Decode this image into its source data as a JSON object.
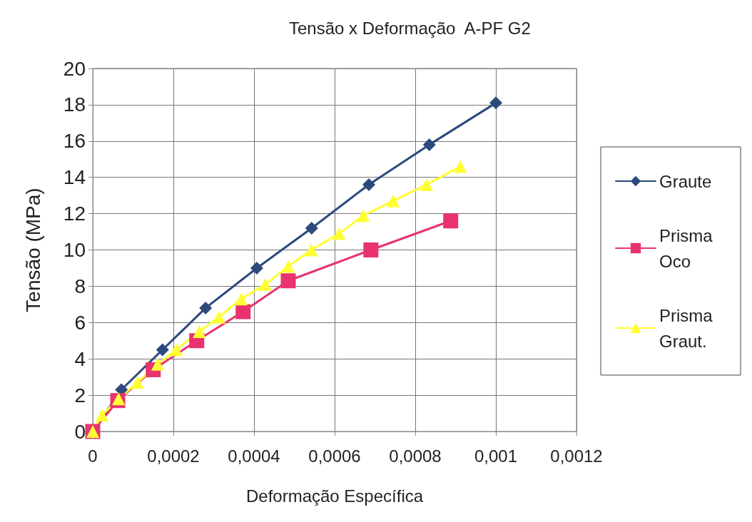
{
  "chart_data": {
    "type": "line",
    "title": "Tensão x Deformação  A-PF G2",
    "xlabel": "Deformação Específica",
    "ylabel": "Tensão (MPa)",
    "xlim": [
      0,
      0.0012
    ],
    "xticks": [
      {
        "value": 0,
        "label": "0"
      },
      {
        "value": 0.0002,
        "label": "0,0002"
      },
      {
        "value": 0.0004,
        "label": "0,0004"
      },
      {
        "value": 0.0006,
        "label": "0,0006"
      },
      {
        "value": 0.0008,
        "label": "0,0008"
      },
      {
        "value": 0.001,
        "label": "0,001"
      },
      {
        "value": 0.0012,
        "label": "0,0012"
      }
    ],
    "ylim": [
      0,
      20
    ],
    "yticks": [
      0,
      2,
      4,
      6,
      8,
      10,
      12,
      14,
      16,
      18,
      20
    ],
    "grid": true,
    "legend": "right",
    "line_style": "solid",
    "series": [
      {
        "name": "Graute",
        "color": "#2c4a7c",
        "marker": "diamond",
        "x": [
          0,
          7.1e-05,
          0.000173,
          0.00028,
          0.000407,
          0.000543,
          0.000685,
          0.000835,
          0.001
        ],
        "values": [
          0,
          2.3,
          4.5,
          6.8,
          9.0,
          11.2,
          13.6,
          15.8,
          18.1
        ]
      },
      {
        "name": "Prisma Oco",
        "color": "#e8336e",
        "marker": "square",
        "x": [
          0,
          6.2e-05,
          0.00015,
          0.000258,
          0.000373,
          0.000485,
          0.00069,
          0.000888
        ],
        "values": [
          0,
          1.7,
          3.4,
          5.0,
          6.6,
          8.3,
          10.0,
          11.6
        ]
      },
      {
        "name": "Prisma Graut.",
        "color": "#ffff33",
        "marker": "triangle",
        "x": [
          0,
          2.3e-05,
          6.4e-05,
          0.000111,
          0.000161,
          0.000207,
          0.000264,
          0.000313,
          0.000368,
          0.000428,
          0.000485,
          0.000542,
          0.000611,
          0.000671,
          0.000745,
          0.000828,
          0.000912
        ],
        "values": [
          0,
          0.9,
          1.8,
          2.7,
          3.7,
          4.5,
          5.5,
          6.3,
          7.3,
          8.1,
          9.1,
          10.0,
          10.9,
          11.9,
          12.7,
          13.6,
          14.6
        ]
      }
    ]
  }
}
